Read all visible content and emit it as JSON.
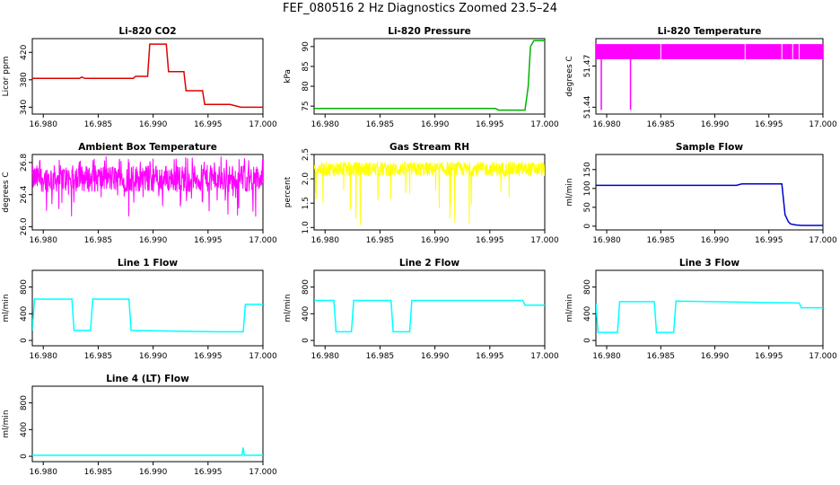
{
  "title": "FEF_080516  2 Hz Diagnostics Zoomed 23.5–24",
  "colors": {
    "red": "#e00000",
    "green": "#00b400",
    "magenta": "#ff00ff",
    "yellow": "#ffff00",
    "blue": "#0000cc",
    "cyan": "#00ffff"
  },
  "chart_data": [
    {
      "type": "line",
      "title": "Li-820 CO2",
      "ylabel": "Licor ppm",
      "color": "red",
      "xlim": [
        16.979,
        17.0
      ],
      "ylim": [
        330,
        440
      ],
      "yticks": [
        "340",
        "380",
        "420"
      ],
      "ytick_values": [
        340,
        380,
        420
      ],
      "series": [
        {
          "x": [
            16.979,
            16.9833,
            16.9835,
            16.9838,
            16.9882,
            16.9884,
            16.9895,
            16.9897,
            16.9912,
            16.9914,
            16.9928,
            16.993,
            16.9945,
            16.9947,
            16.997,
            16.998,
            17.0
          ],
          "y": [
            382,
            382,
            384,
            382,
            382,
            385,
            385,
            432,
            432,
            392,
            392,
            364,
            364,
            344,
            344,
            340,
            340
          ]
        }
      ]
    },
    {
      "type": "line",
      "title": "Li-820 Pressure",
      "ylabel": "kPa",
      "color": "green",
      "xlim": [
        16.979,
        17.0
      ],
      "ylim": [
        73,
        92
      ],
      "yticks": [
        "75",
        "80",
        "85",
        "90"
      ],
      "ytick_values": [
        75,
        80,
        85,
        90
      ],
      "series": [
        {
          "x": [
            16.979,
            16.9955,
            16.9958,
            16.9982,
            16.9985,
            16.9987,
            16.999,
            17.0
          ],
          "y": [
            74.4,
            74.4,
            74.0,
            74.0,
            80,
            90,
            91.5,
            91.5
          ]
        }
      ]
    },
    {
      "type": "line",
      "title": "Li-820 Temperature",
      "ylabel": "degrees C",
      "color": "magenta",
      "xlim": [
        16.979,
        17.0
      ],
      "ylim": [
        51.435,
        51.49
      ],
      "yticks": [
        "51.44",
        "51.47"
      ],
      "ytick_values": [
        51.44,
        51.47
      ],
      "series": [
        {
          "x": [
            16.979,
            17.0
          ],
          "y": [
            51.475,
            51.475
          ]
        }
      ]
    },
    {
      "type": "line",
      "title": "Ambient Box Temperature",
      "ylabel": "degrees C",
      "color": "magenta",
      "xlim": [
        16.979,
        17.0
      ],
      "ylim": [
        25.96,
        26.9
      ],
      "yticks": [
        "26.0",
        "26.4",
        "26.8"
      ],
      "ytick_values": [
        26.0,
        26.4,
        26.8
      ],
      "series": [
        {
          "x": [
            16.979,
            17.0
          ],
          "y": [
            26.6,
            26.6
          ]
        }
      ]
    },
    {
      "type": "line",
      "title": "Gas Stream RH",
      "ylabel": "percent",
      "color": "yellow",
      "xlim": [
        16.979,
        17.0
      ],
      "ylim": [
        0.95,
        2.5
      ],
      "yticks": [
        "1.0",
        "1.5",
        "2.0",
        "2.5"
      ],
      "ytick_values": [
        1.0,
        1.5,
        2.0,
        2.5
      ],
      "series": [
        {
          "x": [
            16.979,
            17.0
          ],
          "y": [
            2.2,
            2.2
          ]
        }
      ]
    },
    {
      "type": "line",
      "title": "Sample Flow",
      "ylabel": "ml/min",
      "color": "blue",
      "xlim": [
        16.979,
        17.0
      ],
      "ylim": [
        -10,
        190
      ],
      "yticks": [
        "0",
        "50",
        "100",
        "150"
      ],
      "ytick_values": [
        0,
        50,
        100,
        150
      ],
      "series": [
        {
          "x": [
            16.979,
            16.992,
            16.9925,
            16.9962,
            16.9965,
            16.9968,
            16.997,
            16.9975,
            16.998,
            17.0
          ],
          "y": [
            108,
            108,
            112,
            112,
            30,
            12,
            6,
            3,
            2,
            2
          ]
        }
      ]
    },
    {
      "type": "line",
      "title": "Line 1 Flow",
      "ylabel": "ml/min",
      "color": "cyan",
      "xlim": [
        16.979,
        17.0
      ],
      "ylim": [
        -80,
        1050
      ],
      "yticks": [
        "0",
        "400",
        "800"
      ],
      "ytick_values": [
        0,
        400,
        800
      ],
      "series": [
        {
          "x": [
            16.979,
            16.9792,
            16.9826,
            16.9828,
            16.9843,
            16.9845,
            16.9878,
            16.988,
            16.9955,
            16.9982,
            16.9984,
            17.0
          ],
          "y": [
            150,
            620,
            620,
            150,
            150,
            620,
            620,
            150,
            130,
            130,
            540,
            540
          ]
        }
      ]
    },
    {
      "type": "line",
      "title": "Line 2 Flow",
      "ylabel": "ml/min",
      "color": "cyan",
      "xlim": [
        16.979,
        17.0
      ],
      "ylim": [
        -80,
        1050
      ],
      "yticks": [
        "0",
        "400",
        "800"
      ],
      "ytick_values": [
        0,
        400,
        800
      ],
      "series": [
        {
          "x": [
            16.979,
            16.9808,
            16.981,
            16.9824,
            16.9826,
            16.986,
            16.9862,
            16.9877,
            16.9879,
            16.998,
            16.9982,
            17.0
          ],
          "y": [
            600,
            600,
            130,
            130,
            600,
            600,
            130,
            130,
            600,
            600,
            530,
            530
          ]
        }
      ]
    },
    {
      "type": "line",
      "title": "Line 3 Flow",
      "ylabel": "ml/min",
      "color": "cyan",
      "xlim": [
        16.979,
        17.0
      ],
      "ylim": [
        -80,
        1050
      ],
      "yticks": [
        "0",
        "400",
        "800"
      ],
      "ytick_values": [
        0,
        400,
        800
      ],
      "series": [
        {
          "x": [
            16.979,
            16.9792,
            16.981,
            16.9812,
            16.9844,
            16.9846,
            16.9862,
            16.9864,
            16.9978,
            16.998,
            17.0
          ],
          "y": [
            550,
            120,
            120,
            580,
            580,
            120,
            120,
            590,
            560,
            490,
            490
          ]
        }
      ]
    },
    {
      "type": "line",
      "title": "Line 4 (LT) Flow",
      "ylabel": "ml/min",
      "color": "cyan",
      "xlim": [
        16.979,
        17.0
      ],
      "ylim": [
        -80,
        1050
      ],
      "yticks": [
        "0",
        "400",
        "800"
      ],
      "ytick_values": [
        0,
        400,
        800
      ],
      "series": [
        {
          "x": [
            16.979,
            16.9981,
            16.9982,
            16.9983,
            17.0
          ],
          "y": [
            15,
            15,
            130,
            15,
            15
          ]
        }
      ]
    }
  ],
  "xticks": [
    "16.980",
    "16.985",
    "16.990",
    "16.995",
    "17.000"
  ],
  "xtick_values": [
    16.98,
    16.985,
    16.99,
    16.995,
    17.0
  ]
}
